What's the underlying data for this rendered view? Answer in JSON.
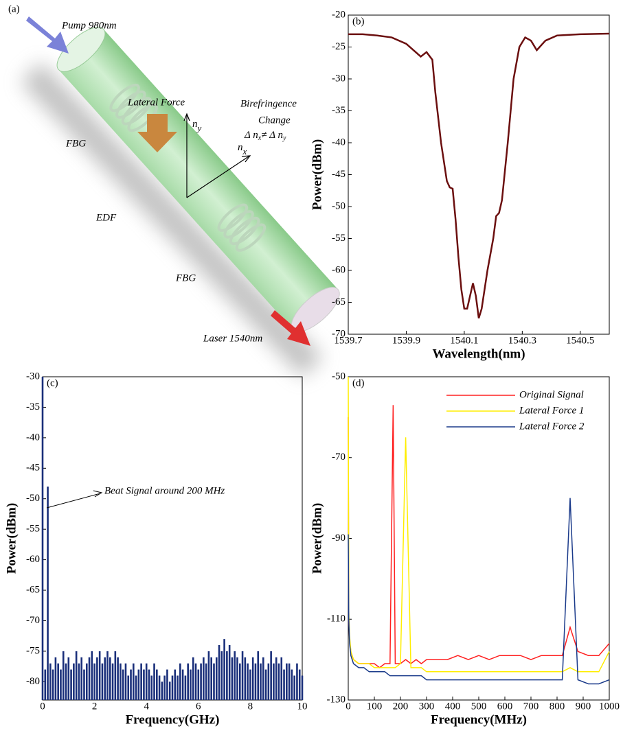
{
  "diagram": {
    "panel": "(a)",
    "pump": "Pump 980nm",
    "lateral_force": "Lateral Force",
    "birefringence": "Birefringence",
    "change": "Change",
    "delta": [
      "Δ n",
      "x",
      "≠ Δ n",
      "y"
    ],
    "ny": [
      "n",
      "y"
    ],
    "nx": [
      "n",
      "x"
    ],
    "fbg_top": "FBG",
    "fbg_bottom": "FBG",
    "edf": "EDF",
    "laser": "Laser 1540nm"
  },
  "chart_data": [
    {
      "type": "line",
      "label": "(b)",
      "x_label": "Wavelength(nm)",
      "y_label": "Power(dBm)",
      "x": [
        1539.7,
        1539.75,
        1539.8,
        1539.85,
        1539.9,
        1539.95,
        1539.97,
        1539.99,
        1540.0,
        1540.02,
        1540.04,
        1540.05,
        1540.06,
        1540.07,
        1540.08,
        1540.09,
        1540.1,
        1540.11,
        1540.12,
        1540.13,
        1540.14,
        1540.15,
        1540.16,
        1540.18,
        1540.2,
        1540.21,
        1540.22,
        1540.23,
        1540.25,
        1540.27,
        1540.29,
        1540.31,
        1540.33,
        1540.35,
        1540.38,
        1540.42,
        1540.5,
        1540.6
      ],
      "values": [
        -23,
        -23,
        -23.2,
        -23.5,
        -24.5,
        -26.5,
        -25.8,
        -27,
        -32,
        -40,
        -46,
        -47,
        -47.2,
        -52,
        -58,
        -63,
        -66,
        -66,
        -64,
        -62,
        -64,
        -67.5,
        -66,
        -60,
        -55,
        -51.5,
        -51,
        -49,
        -40,
        -30,
        -25,
        -23.5,
        -24,
        -25.5,
        -24,
        -23.2,
        -23,
        -22.9
      ],
      "color": "#6b0f0f",
      "xlim": [
        1539.7,
        1540.6
      ],
      "xticks": [
        1539.7,
        1539.9,
        1540.1,
        1540.3,
        1540.5
      ],
      "ylim": [
        -70,
        -20
      ],
      "yticks": [
        -20,
        -25,
        -30,
        -35,
        -40,
        -45,
        -50,
        -55,
        -60,
        -65,
        -70
      ]
    },
    {
      "type": "bar",
      "label": "(c)",
      "x_label": "Frequency(GHz)",
      "y_label": "Power(dBm)",
      "annotation": "Beat Signal around 200 MHz",
      "x": [
        0,
        0.1,
        0.2,
        0.3,
        0.4,
        0.5,
        0.6,
        0.7,
        0.8,
        0.9,
        1,
        1.1,
        1.2,
        1.3,
        1.4,
        1.5,
        1.6,
        1.7,
        1.8,
        1.9,
        2,
        2.1,
        2.2,
        2.3,
        2.4,
        2.5,
        2.6,
        2.7,
        2.8,
        2.9,
        3,
        3.1,
        3.2,
        3.3,
        3.4,
        3.5,
        3.6,
        3.7,
        3.8,
        3.9,
        4,
        4.1,
        4.2,
        4.3,
        4.4,
        4.5,
        4.6,
        4.7,
        4.8,
        4.9,
        5,
        5.1,
        5.2,
        5.3,
        5.4,
        5.5,
        5.6,
        5.7,
        5.8,
        5.9,
        6,
        6.1,
        6.2,
        6.3,
        6.4,
        6.5,
        6.6,
        6.7,
        6.8,
        6.9,
        7,
        7.1,
        7.2,
        7.3,
        7.4,
        7.5,
        7.6,
        7.7,
        7.8,
        7.9,
        8,
        8.1,
        8.2,
        8.3,
        8.4,
        8.5,
        8.6,
        8.7,
        8.8,
        8.9,
        9,
        9.1,
        9.2,
        9.3,
        9.4,
        9.5,
        9.6,
        9.7,
        9.8,
        9.9,
        10
      ],
      "values": [
        -30,
        -78,
        -48,
        -77,
        -78,
        -76,
        -77,
        -78,
        -75,
        -77,
        -76,
        -78,
        -77,
        -75,
        -77,
        -76,
        -78,
        -77,
        -76,
        -75,
        -77,
        -76,
        -75,
        -77,
        -76,
        -75,
        -76,
        -77,
        -75,
        -76,
        -77,
        -78,
        -77,
        -79,
        -78,
        -77,
        -79,
        -78,
        -77,
        -78,
        -77,
        -78,
        -79,
        -77,
        -78,
        -79,
        -80,
        -79,
        -78,
        -80,
        -79,
        -78,
        -79,
        -77,
        -78,
        -79,
        -77,
        -78,
        -76,
        -77,
        -78,
        -77,
        -76,
        -77,
        -75,
        -76,
        -77,
        -76,
        -74,
        -75,
        -73,
        -75,
        -74,
        -76,
        -75,
        -76,
        -77,
        -75,
        -76,
        -77,
        -78,
        -76,
        -77,
        -75,
        -77,
        -76,
        -78,
        -77,
        -75,
        -77,
        -76,
        -77,
        -76,
        -78,
        -77,
        -77,
        -78,
        -79,
        -77,
        -78,
        -79
      ],
      "color": "#1a2f7a",
      "xlim": [
        0,
        10
      ],
      "xticks": [
        0,
        2,
        4,
        6,
        8,
        10
      ],
      "ylim": [
        -83,
        -30
      ],
      "yticks": [
        -30,
        -35,
        -40,
        -45,
        -50,
        -55,
        -60,
        -65,
        -70,
        -75,
        -80
      ]
    },
    {
      "type": "line",
      "label": "(d)",
      "x_label": "Frequency(MHz)",
      "y_label": "Power(dBm)",
      "x": [
        0,
        2,
        5,
        10,
        20,
        40,
        60,
        80,
        100,
        120,
        140,
        160,
        172,
        180,
        200,
        220,
        240,
        260,
        280,
        300,
        340,
        380,
        420,
        460,
        500,
        540,
        580,
        620,
        660,
        700,
        740,
        780,
        820,
        850,
        880,
        920,
        960,
        1000
      ],
      "series": [
        {
          "name": "Original Signal",
          "color": "#ff2020",
          "values": [
            -60,
            -110,
            -115,
            -118,
            -120,
            -121,
            -121,
            -121,
            -121,
            -122,
            -121,
            -121,
            -57,
            -121,
            -121,
            -120,
            -121,
            -120,
            -121,
            -120,
            -120,
            -120,
            -119,
            -120,
            -119,
            -120,
            -119,
            -119,
            -119,
            -120,
            -119,
            -119,
            -119,
            -112,
            -118,
            -119,
            -119,
            -116
          ]
        },
        {
          "name": "Lateral Force 1",
          "color": "#ffee00",
          "values": [
            -50,
            -108,
            -114,
            -118,
            -120,
            -121,
            -121,
            -121,
            -122,
            -122,
            -122,
            -122,
            -122,
            -122,
            -121,
            -65,
            -122,
            -122,
            -122,
            -123,
            -123,
            -123,
            -123,
            -123,
            -123,
            -123,
            -123,
            -123,
            -123,
            -123,
            -123,
            -123,
            -123,
            -122,
            -123,
            -123,
            -123,
            -118
          ]
        },
        {
          "name": "Lateral Force 2",
          "color": "#1a3a8a",
          "values": [
            -89,
            -110,
            -116,
            -119,
            -121,
            -122,
            -122,
            -123,
            -123,
            -123,
            -123,
            -124,
            -124,
            -124,
            -124,
            -124,
            -124,
            -124,
            -124,
            -125,
            -125,
            -125,
            -125,
            -125,
            -125,
            -125,
            -125,
            -125,
            -125,
            -125,
            -125,
            -125,
            -125,
            -80,
            -125,
            -126,
            -126,
            -125
          ]
        }
      ],
      "xlim": [
        0,
        1000
      ],
      "xticks": [
        0,
        100,
        200,
        300,
        400,
        500,
        600,
        700,
        800,
        900,
        1000
      ],
      "ylim": [
        -130,
        -50
      ],
      "yticks": [
        -50,
        -70,
        -90,
        -110,
        -130
      ]
    }
  ]
}
